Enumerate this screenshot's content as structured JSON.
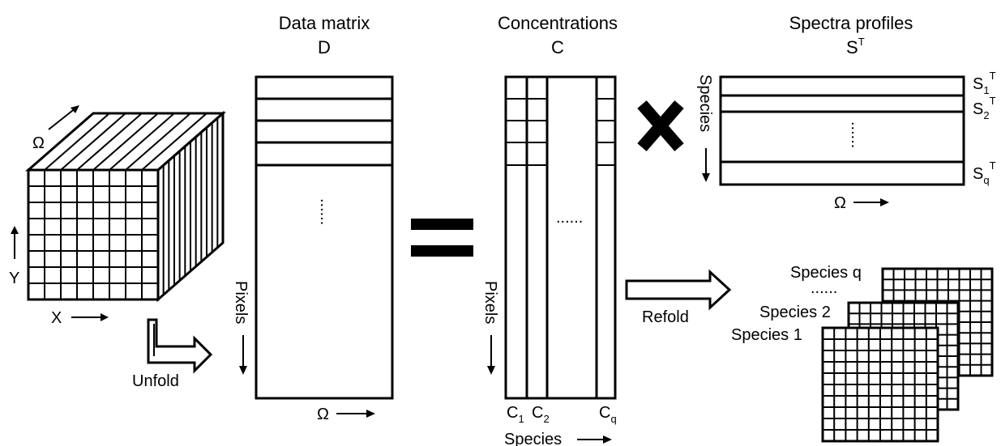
{
  "cube": {
    "omega": "Ω",
    "x": "X",
    "y": "Y",
    "unfold": "Unfold"
  },
  "data_matrix": {
    "title": "Data matrix",
    "symbol": "D",
    "pixels": "Pixels",
    "omega": "Ω",
    "dots": "......"
  },
  "concentrations": {
    "title": "Concentrations",
    "symbol": "C",
    "pixels": "Pixels",
    "dots": "......",
    "c1": "C",
    "c1_sub": "1",
    "c2": "C",
    "c2_sub": "2",
    "cq": "C",
    "cq_sub": "q",
    "species": "Species"
  },
  "spectra": {
    "title": "Spectra profiles",
    "symbol": "S",
    "symbol_sup": "T",
    "species": "Species",
    "omega": "Ω",
    "dots": "......",
    "s1": "S",
    "s1_sub": "1",
    "s1_sup": "T",
    "s2": "S",
    "s2_sub": "2",
    "s2_sup": "T",
    "sq": "S",
    "sq_sub": "q",
    "sq_sup": "T"
  },
  "refold": {
    "label": "Refold",
    "species_q": "Species q",
    "dots": "......",
    "species_2": "Species 2",
    "species_1": "Species 1"
  }
}
